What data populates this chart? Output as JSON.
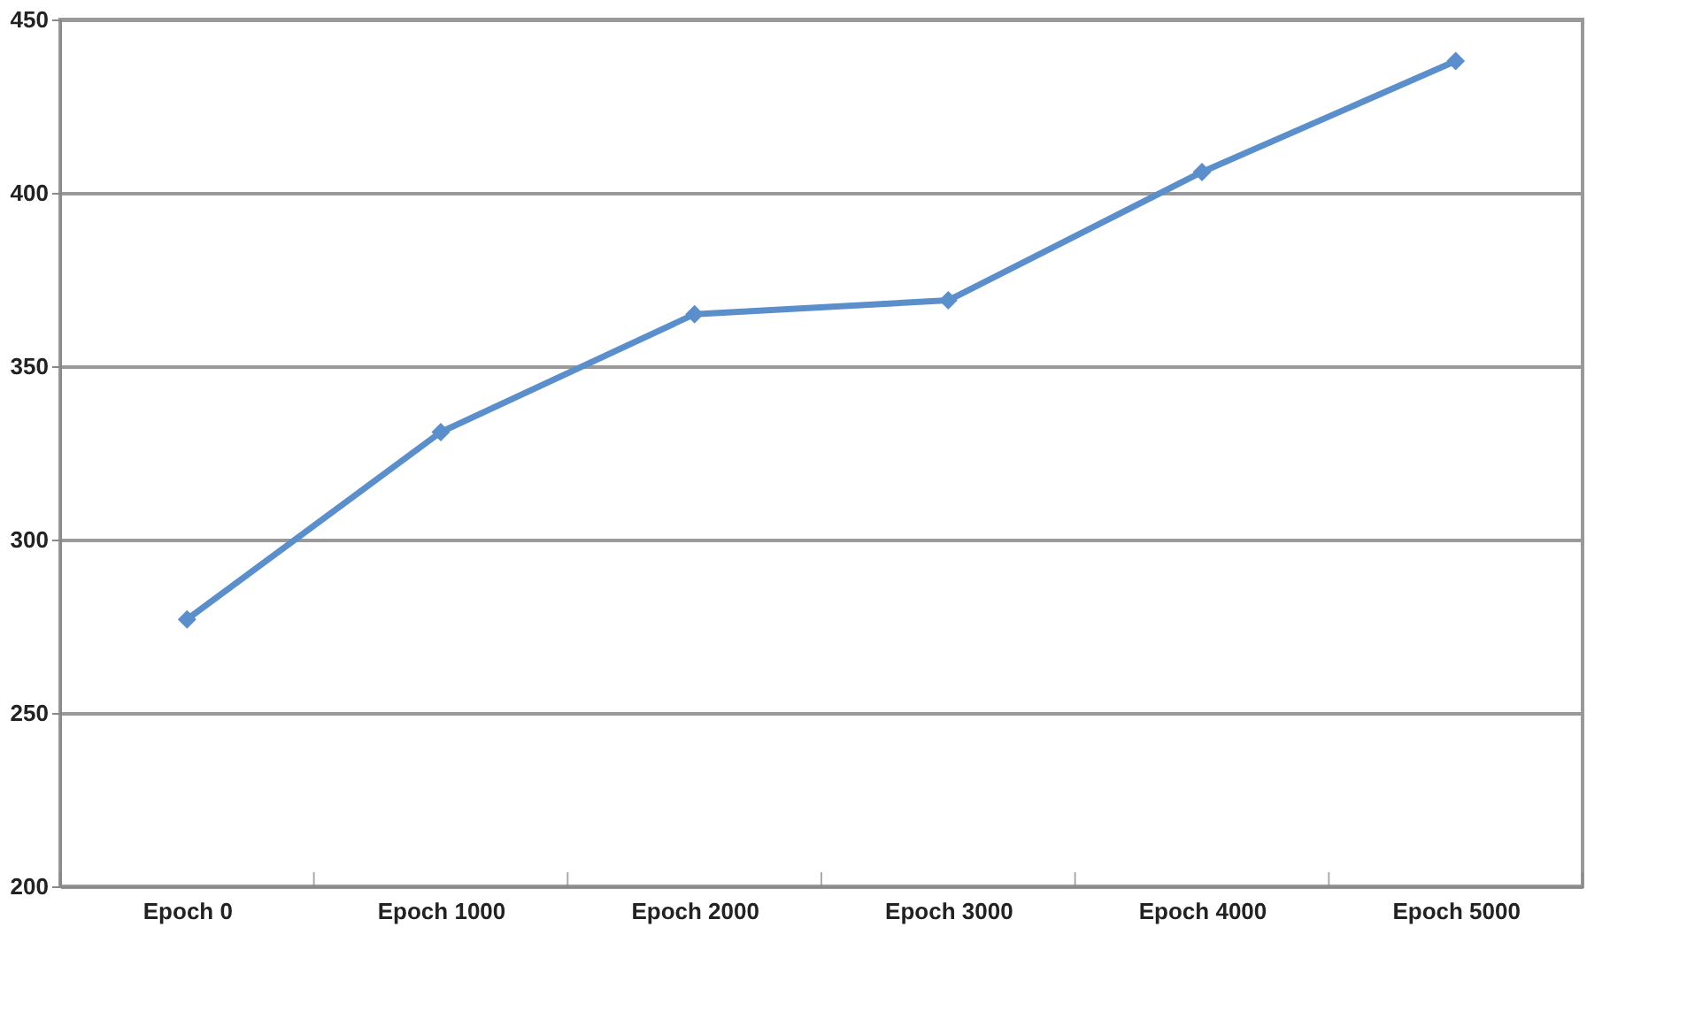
{
  "chart_data": {
    "type": "line",
    "categories": [
      "Epoch 0",
      "Epoch 1000",
      "Epoch 2000",
      "Epoch 3000",
      "Epoch 4000",
      "Epoch 5000"
    ],
    "series": [
      {
        "color": "#5b8fcb",
        "values": [
          277,
          331,
          365,
          369,
          406,
          438
        ]
      }
    ],
    "ylim": [
      200,
      450
    ],
    "yticks": [
      200,
      250,
      300,
      350,
      400,
      450
    ],
    "grid": "y",
    "marker": "diamond",
    "line_style": "solid",
    "legend": false
  }
}
